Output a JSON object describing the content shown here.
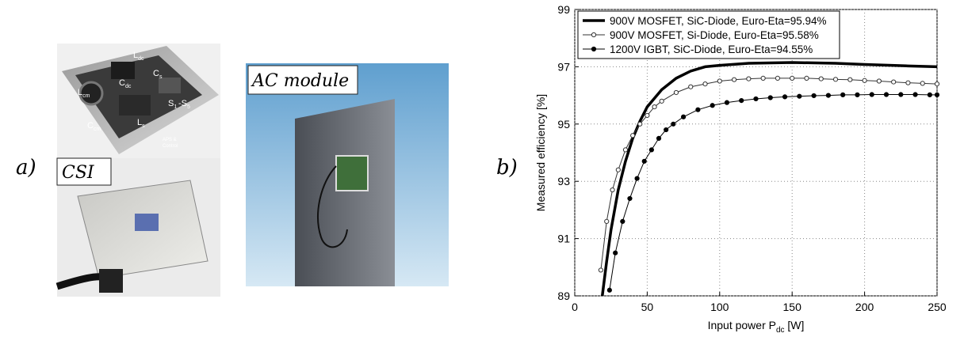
{
  "panel_a": {
    "label": "a)",
    "csi_label": "CSI",
    "ac_label": "AC module",
    "components": [
      {
        "main": "L",
        "sub": "cm"
      },
      {
        "main": "L",
        "sub": "dc"
      },
      {
        "main": "C",
        "sub": "dc"
      },
      {
        "main": "C",
        "sub": "s"
      },
      {
        "main": "S",
        "sub": "1"
      },
      {
        "main": "-S",
        "sub": "5"
      },
      {
        "main": "C",
        "sub": "cm"
      },
      {
        "main": "L",
        "sub": "s"
      },
      {
        "main": "APS &",
        "sub": ""
      },
      {
        "main": "Control",
        "sub": ""
      }
    ]
  },
  "panel_b": {
    "label": "b)"
  },
  "chart_data": {
    "type": "line",
    "y_label": "Measured efficiency [%]",
    "x_label": [
      "Input power P",
      "dc",
      " [W]"
    ],
    "xlim": [
      0,
      250
    ],
    "xticks": [
      0,
      50,
      100,
      150,
      200,
      250
    ],
    "ylim": [
      89,
      99
    ],
    "yticks": [
      89,
      91,
      93,
      95,
      97,
      99
    ],
    "grid": true,
    "legend": "upper-left",
    "series": [
      {
        "name": "900V MOSFET, SiC-Diode, Euro-Eta=95.94%",
        "color": "#000000",
        "marker": "none",
        "width": 3.5,
        "x": [
          19,
          20,
          22,
          25,
          30,
          35,
          40,
          45,
          50,
          60,
          70,
          80,
          90,
          100,
          120,
          150,
          180,
          200,
          230,
          250
        ],
        "values": [
          89,
          89.4,
          90.2,
          91.3,
          92.7,
          93.7,
          94.5,
          95.1,
          95.6,
          96.2,
          96.6,
          96.85,
          97.0,
          97.05,
          97.12,
          97.15,
          97.12,
          97.08,
          97.03,
          97.0
        ]
      },
      {
        "name": "900V MOSFET, Si-Diode, Euro-Eta=95.58%",
        "color": "#333333",
        "marker": "open",
        "width": 1,
        "x": [
          18,
          22,
          26,
          30,
          35,
          40,
          45,
          50,
          55,
          60,
          70,
          80,
          90,
          100,
          110,
          120,
          130,
          140,
          150,
          160,
          170,
          180,
          190,
          200,
          210,
          220,
          230,
          240,
          250
        ],
        "values": [
          89.9,
          91.6,
          92.7,
          93.4,
          94.1,
          94.6,
          95.0,
          95.3,
          95.6,
          95.8,
          96.1,
          96.3,
          96.4,
          96.5,
          96.55,
          96.58,
          96.6,
          96.6,
          96.6,
          96.6,
          96.58,
          96.56,
          96.55,
          96.52,
          96.5,
          96.47,
          96.44,
          96.42,
          96.4
        ]
      },
      {
        "name": "1200V IGBT, SiC-Diode, Euro-Eta=94.55%",
        "color": "#000000",
        "marker": "filled",
        "width": 1,
        "x": [
          24,
          28,
          33,
          38,
          43,
          48,
          53,
          58,
          63,
          68,
          75,
          85,
          95,
          105,
          115,
          125,
          135,
          145,
          155,
          165,
          175,
          185,
          195,
          205,
          215,
          225,
          235,
          245,
          250
        ],
        "values": [
          89.2,
          90.5,
          91.6,
          92.4,
          93.1,
          93.7,
          94.1,
          94.5,
          94.8,
          95.0,
          95.25,
          95.5,
          95.65,
          95.75,
          95.82,
          95.88,
          95.92,
          95.95,
          95.97,
          95.99,
          96.0,
          96.02,
          96.02,
          96.03,
          96.03,
          96.03,
          96.03,
          96.02,
          96.02
        ]
      }
    ]
  }
}
